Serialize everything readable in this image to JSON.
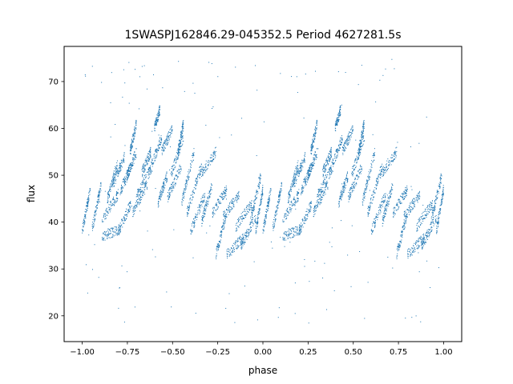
{
  "chart_data": {
    "type": "scatter",
    "title": "1SWASPJ162846.29-045352.5 Period 4627281.5s",
    "xlabel": "phase",
    "ylabel": "flux",
    "xlim": [
      -1.1,
      1.1
    ],
    "ylim": [
      14.5,
      77.5
    ],
    "xticks": [
      -1.0,
      -0.75,
      -0.5,
      -0.25,
      0.0,
      0.25,
      0.5,
      0.75,
      1.0
    ],
    "xtick_labels": [
      "−1.00",
      "−0.75",
      "−0.50",
      "−0.25",
      "0.00",
      "0.25",
      "0.50",
      "0.75",
      "1.00"
    ],
    "yticks": [
      20,
      30,
      40,
      50,
      60,
      70
    ],
    "ytick_labels": [
      "20",
      "30",
      "40",
      "50",
      "60",
      "70"
    ],
    "grid": false,
    "marker_color": "#1f77b4",
    "series": [
      {
        "name": "",
        "segments": [
          {
            "x0": 0.0,
            "x1": 0.045,
            "y0": 38.0,
            "y1": 47.0
          },
          {
            "x0": 0.055,
            "x1": 0.105,
            "y0": 38.5,
            "y1": 48.0
          },
          {
            "x0": 0.11,
            "x1": 0.21,
            "y0": 37.0,
            "y1": 38.5
          },
          {
            "x0": 0.11,
            "x1": 0.2,
            "y0": 40.5,
            "y1": 46.0
          },
          {
            "x0": 0.14,
            "x1": 0.195,
            "y0": 45.0,
            "y1": 52.5
          },
          {
            "x0": 0.17,
            "x1": 0.235,
            "y0": 48.0,
            "y1": 54.0
          },
          {
            "x0": 0.2,
            "x1": 0.27,
            "y0": 38.0,
            "y1": 44.0
          },
          {
            "x0": 0.21,
            "x1": 0.27,
            "y0": 46.5,
            "y1": 52.0
          },
          {
            "x0": 0.24,
            "x1": 0.3,
            "y0": 49.0,
            "y1": 55.0
          },
          {
            "x0": 0.265,
            "x1": 0.3,
            "y0": 55.0,
            "y1": 61.0
          },
          {
            "x0": 0.28,
            "x1": 0.36,
            "y0": 42.0,
            "y1": 48.0
          },
          {
            "x0": 0.3,
            "x1": 0.39,
            "y0": 45.5,
            "y1": 52.0
          },
          {
            "x0": 0.33,
            "x1": 0.38,
            "y0": 50.5,
            "y1": 55.0
          },
          {
            "x0": 0.37,
            "x1": 0.44,
            "y0": 50.5,
            "y1": 58.0
          },
          {
            "x0": 0.4,
            "x1": 0.43,
            "y0": 60.0,
            "y1": 64.0
          },
          {
            "x0": 0.42,
            "x1": 0.47,
            "y0": 44.0,
            "y1": 50.0
          },
          {
            "x0": 0.44,
            "x1": 0.5,
            "y0": 55.0,
            "y1": 60.0
          },
          {
            "x0": 0.47,
            "x1": 0.55,
            "y0": 45.0,
            "y1": 52.0
          },
          {
            "x0": 0.49,
            "x1": 0.56,
            "y0": 50.0,
            "y1": 58.0
          },
          {
            "x0": 0.53,
            "x1": 0.56,
            "y0": 55.0,
            "y1": 61.0
          },
          {
            "x0": 0.55,
            "x1": 0.62,
            "y0": 44.0,
            "y1": 55.0
          },
          {
            "x0": 0.58,
            "x1": 0.66,
            "y0": 42.0,
            "y1": 52.0
          },
          {
            "x0": 0.6,
            "x1": 0.68,
            "y0": 38.0,
            "y1": 46.0
          },
          {
            "x0": 0.65,
            "x1": 0.74,
            "y0": 50.0,
            "y1": 55.0
          },
          {
            "x0": 0.66,
            "x1": 0.72,
            "y0": 40.0,
            "y1": 48.0
          },
          {
            "x0": 0.72,
            "x1": 0.8,
            "y0": 42.0,
            "y1": 47.0
          },
          {
            "x0": 0.74,
            "x1": 0.8,
            "y0": 33.0,
            "y1": 42.0
          },
          {
            "x0": 0.78,
            "x1": 0.87,
            "y0": 41.0,
            "y1": 46.0
          },
          {
            "x0": 0.8,
            "x1": 0.9,
            "y0": 33.0,
            "y1": 37.0
          },
          {
            "x0": 0.85,
            "x1": 0.94,
            "y0": 39.0,
            "y1": 44.0
          },
          {
            "x0": 0.88,
            "x1": 0.96,
            "y0": 35.0,
            "y1": 41.0
          },
          {
            "x0": 0.93,
            "x1": 0.99,
            "y0": 40.0,
            "y1": 50.0
          },
          {
            "x0": 0.96,
            "x1": 1.0,
            "y0": 38.0,
            "y1": 47.0
          }
        ],
        "points_per_segment": 90,
        "mirror_period": 1.0,
        "outlier_count": 160,
        "outlier_yrange": [
          18.0,
          75.0
        ]
      }
    ]
  }
}
